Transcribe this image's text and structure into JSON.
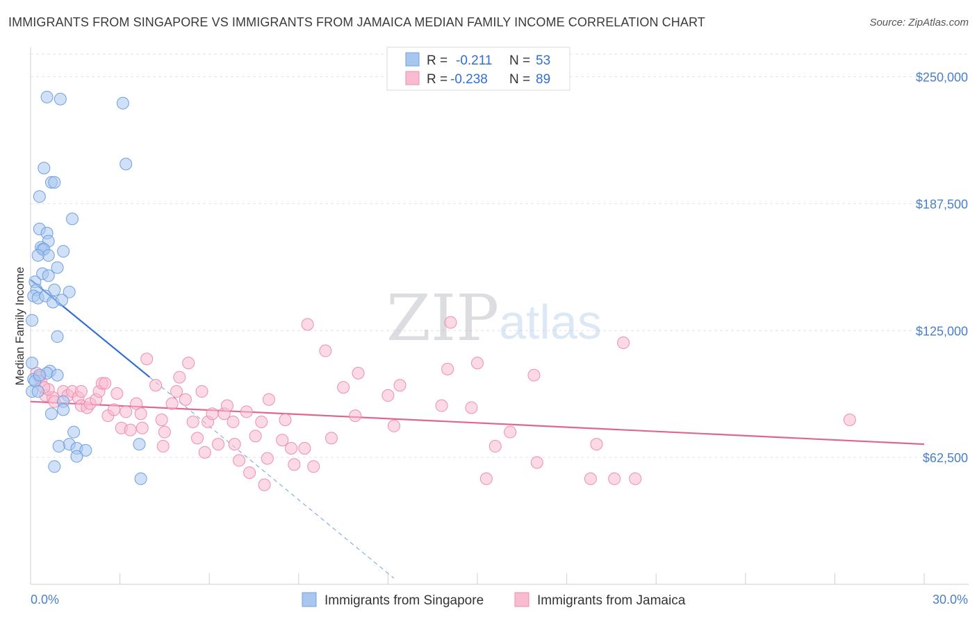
{
  "title": "IMMIGRANTS FROM SINGAPORE VS IMMIGRANTS FROM JAMAICA MEDIAN FAMILY INCOME CORRELATION CHART",
  "source": "Source: ZipAtlas.com",
  "watermark": {
    "zip": "ZIP",
    "atlas": "atlas"
  },
  "legend": {
    "r_label": "R =",
    "n_label": "N =",
    "rows": [
      {
        "r": "-0.211",
        "n": "53",
        "color": "#a9c6ef",
        "stroke": "#6f9fe0"
      },
      {
        "r": "-0.238",
        "n": "89",
        "color": "#f7bcd0",
        "stroke": "#ee8db0"
      }
    ]
  },
  "colors": {
    "singapore_fill": "#a9c6ef",
    "singapore_stroke": "#6f9fe0",
    "singapore_line": "#2f6fd0",
    "jamaica_fill": "#f7bcd0",
    "jamaica_stroke": "#ee8db0",
    "jamaica_line": "#e0658f",
    "grid": "#e3e3e3",
    "tick_label": "#4a7fc9"
  },
  "chart_data": {
    "type": "scatter",
    "title": "IMMIGRANTS FROM SINGAPORE VS IMMIGRANTS FROM JAMAICA MEDIAN FAMILY INCOME CORRELATION CHART",
    "xlabel": "",
    "ylabel": "Median Family Income",
    "xlim": [
      0,
      30
    ],
    "ylim": [
      0,
      262500
    ],
    "x_tick_labels": [
      "0.0%",
      "30.0%"
    ],
    "y_ticks": [
      62500,
      125000,
      187500,
      250000
    ],
    "y_tick_labels": [
      "$62,500",
      "$125,000",
      "$187,500",
      "$250,000"
    ],
    "grid": true,
    "legend_position": "top-center",
    "series": [
      {
        "name": "Immigrants from Singapore",
        "r": -0.211,
        "n": 53,
        "trend": {
          "x": [
            0.0,
            4.0
          ],
          "y": [
            150000,
            102000
          ]
        },
        "trend_extension": {
          "x": [
            4.0,
            12.2
          ],
          "y": [
            102000,
            3000
          ]
        },
        "points": [
          [
            0.55,
            240000
          ],
          [
            1.0,
            239000
          ],
          [
            3.1,
            237000
          ],
          [
            3.2,
            207000
          ],
          [
            0.45,
            205000
          ],
          [
            0.7,
            198000
          ],
          [
            0.8,
            198000
          ],
          [
            0.3,
            191000
          ],
          [
            1.4,
            180000
          ],
          [
            0.3,
            175000
          ],
          [
            0.55,
            173000
          ],
          [
            0.6,
            169000
          ],
          [
            0.35,
            166000
          ],
          [
            0.4,
            165000
          ],
          [
            0.45,
            165000
          ],
          [
            1.1,
            164000
          ],
          [
            0.6,
            162000
          ],
          [
            0.25,
            162000
          ],
          [
            0.9,
            156000
          ],
          [
            0.4,
            153000
          ],
          [
            0.6,
            152000
          ],
          [
            0.15,
            149000
          ],
          [
            0.2,
            145000
          ],
          [
            0.8,
            145000
          ],
          [
            1.3,
            144000
          ],
          [
            0.1,
            142000
          ],
          [
            0.25,
            141000
          ],
          [
            0.5,
            142000
          ],
          [
            0.75,
            139000
          ],
          [
            1.05,
            140000
          ],
          [
            0.05,
            130000
          ],
          [
            0.9,
            122000
          ],
          [
            0.05,
            109000
          ],
          [
            0.65,
            105000
          ],
          [
            0.55,
            104000
          ],
          [
            0.9,
            103000
          ],
          [
            0.05,
            95000
          ],
          [
            1.1,
            90000
          ],
          [
            1.1,
            86000
          ],
          [
            0.7,
            84000
          ],
          [
            1.45,
            75000
          ],
          [
            1.3,
            69000
          ],
          [
            0.95,
            68000
          ],
          [
            1.55,
            67000
          ],
          [
            1.85,
            66000
          ],
          [
            1.55,
            63000
          ],
          [
            3.65,
            69000
          ],
          [
            0.8,
            58000
          ],
          [
            3.7,
            52000
          ],
          [
            0.1,
            101000
          ],
          [
            0.15,
            100000
          ],
          [
            0.25,
            95000
          ],
          [
            0.3,
            103000
          ]
        ]
      },
      {
        "name": "Immigrants from Jamaica",
        "r": -0.238,
        "n": 89,
        "trend": {
          "x": [
            0.0,
            30.0
          ],
          "y": [
            90000,
            69000
          ]
        },
        "points": [
          [
            0.2,
            104000
          ],
          [
            0.3,
            102000
          ],
          [
            0.35,
            100000
          ],
          [
            0.5,
            93000
          ],
          [
            0.75,
            92000
          ],
          [
            0.8,
            90000
          ],
          [
            1.1,
            95000
          ],
          [
            1.25,
            93000
          ],
          [
            1.4,
            95000
          ],
          [
            1.6,
            92000
          ],
          [
            1.7,
            95000
          ],
          [
            1.7,
            88000
          ],
          [
            1.9,
            87000
          ],
          [
            2.0,
            89000
          ],
          [
            2.2,
            91000
          ],
          [
            2.3,
            95000
          ],
          [
            2.4,
            99000
          ],
          [
            2.5,
            99000
          ],
          [
            2.6,
            83000
          ],
          [
            2.8,
            86000
          ],
          [
            2.9,
            94000
          ],
          [
            3.05,
            77000
          ],
          [
            3.2,
            85000
          ],
          [
            3.35,
            76000
          ],
          [
            3.55,
            89000
          ],
          [
            3.7,
            84000
          ],
          [
            3.75,
            77000
          ],
          [
            3.9,
            111000
          ],
          [
            4.2,
            98000
          ],
          [
            4.4,
            81000
          ],
          [
            4.5,
            75000
          ],
          [
            4.45,
            68000
          ],
          [
            4.75,
            89000
          ],
          [
            4.9,
            95000
          ],
          [
            5.0,
            102000
          ],
          [
            5.2,
            91000
          ],
          [
            5.3,
            109000
          ],
          [
            5.45,
            80000
          ],
          [
            5.6,
            72000
          ],
          [
            5.75,
            95000
          ],
          [
            5.85,
            65000
          ],
          [
            5.95,
            80000
          ],
          [
            6.1,
            84000
          ],
          [
            6.3,
            69000
          ],
          [
            6.5,
            84000
          ],
          [
            6.6,
            88000
          ],
          [
            6.8,
            80000
          ],
          [
            6.85,
            69000
          ],
          [
            7.0,
            61000
          ],
          [
            7.25,
            85000
          ],
          [
            7.35,
            55000
          ],
          [
            7.55,
            73000
          ],
          [
            7.75,
            80000
          ],
          [
            7.85,
            49000
          ],
          [
            7.95,
            62000
          ],
          [
            8.0,
            91000
          ],
          [
            8.45,
            71000
          ],
          [
            8.55,
            81000
          ],
          [
            8.75,
            67000
          ],
          [
            8.85,
            59000
          ],
          [
            9.2,
            67000
          ],
          [
            9.3,
            128000
          ],
          [
            9.5,
            58000
          ],
          [
            9.9,
            115000
          ],
          [
            10.1,
            72000
          ],
          [
            10.5,
            97000
          ],
          [
            10.9,
            83000
          ],
          [
            11.0,
            104000
          ],
          [
            12.0,
            93000
          ],
          [
            12.2,
            78000
          ],
          [
            12.4,
            98000
          ],
          [
            13.8,
            88000
          ],
          [
            14.0,
            106000
          ],
          [
            14.1,
            129000
          ],
          [
            14.8,
            87000
          ],
          [
            15.0,
            109000
          ],
          [
            15.3,
            52000
          ],
          [
            15.6,
            68000
          ],
          [
            16.1,
            75000
          ],
          [
            16.9,
            103000
          ],
          [
            17.0,
            60000
          ],
          [
            18.8,
            52000
          ],
          [
            19.0,
            69000
          ],
          [
            19.6,
            52000
          ],
          [
            19.9,
            119000
          ],
          [
            20.3,
            52000
          ],
          [
            27.5,
            81000
          ],
          [
            0.6,
            96000
          ],
          [
            0.45,
            97000
          ]
        ]
      }
    ]
  },
  "bottom_legend": [
    {
      "label": "Immigrants from Singapore"
    },
    {
      "label": "Immigrants from Jamaica"
    }
  ]
}
